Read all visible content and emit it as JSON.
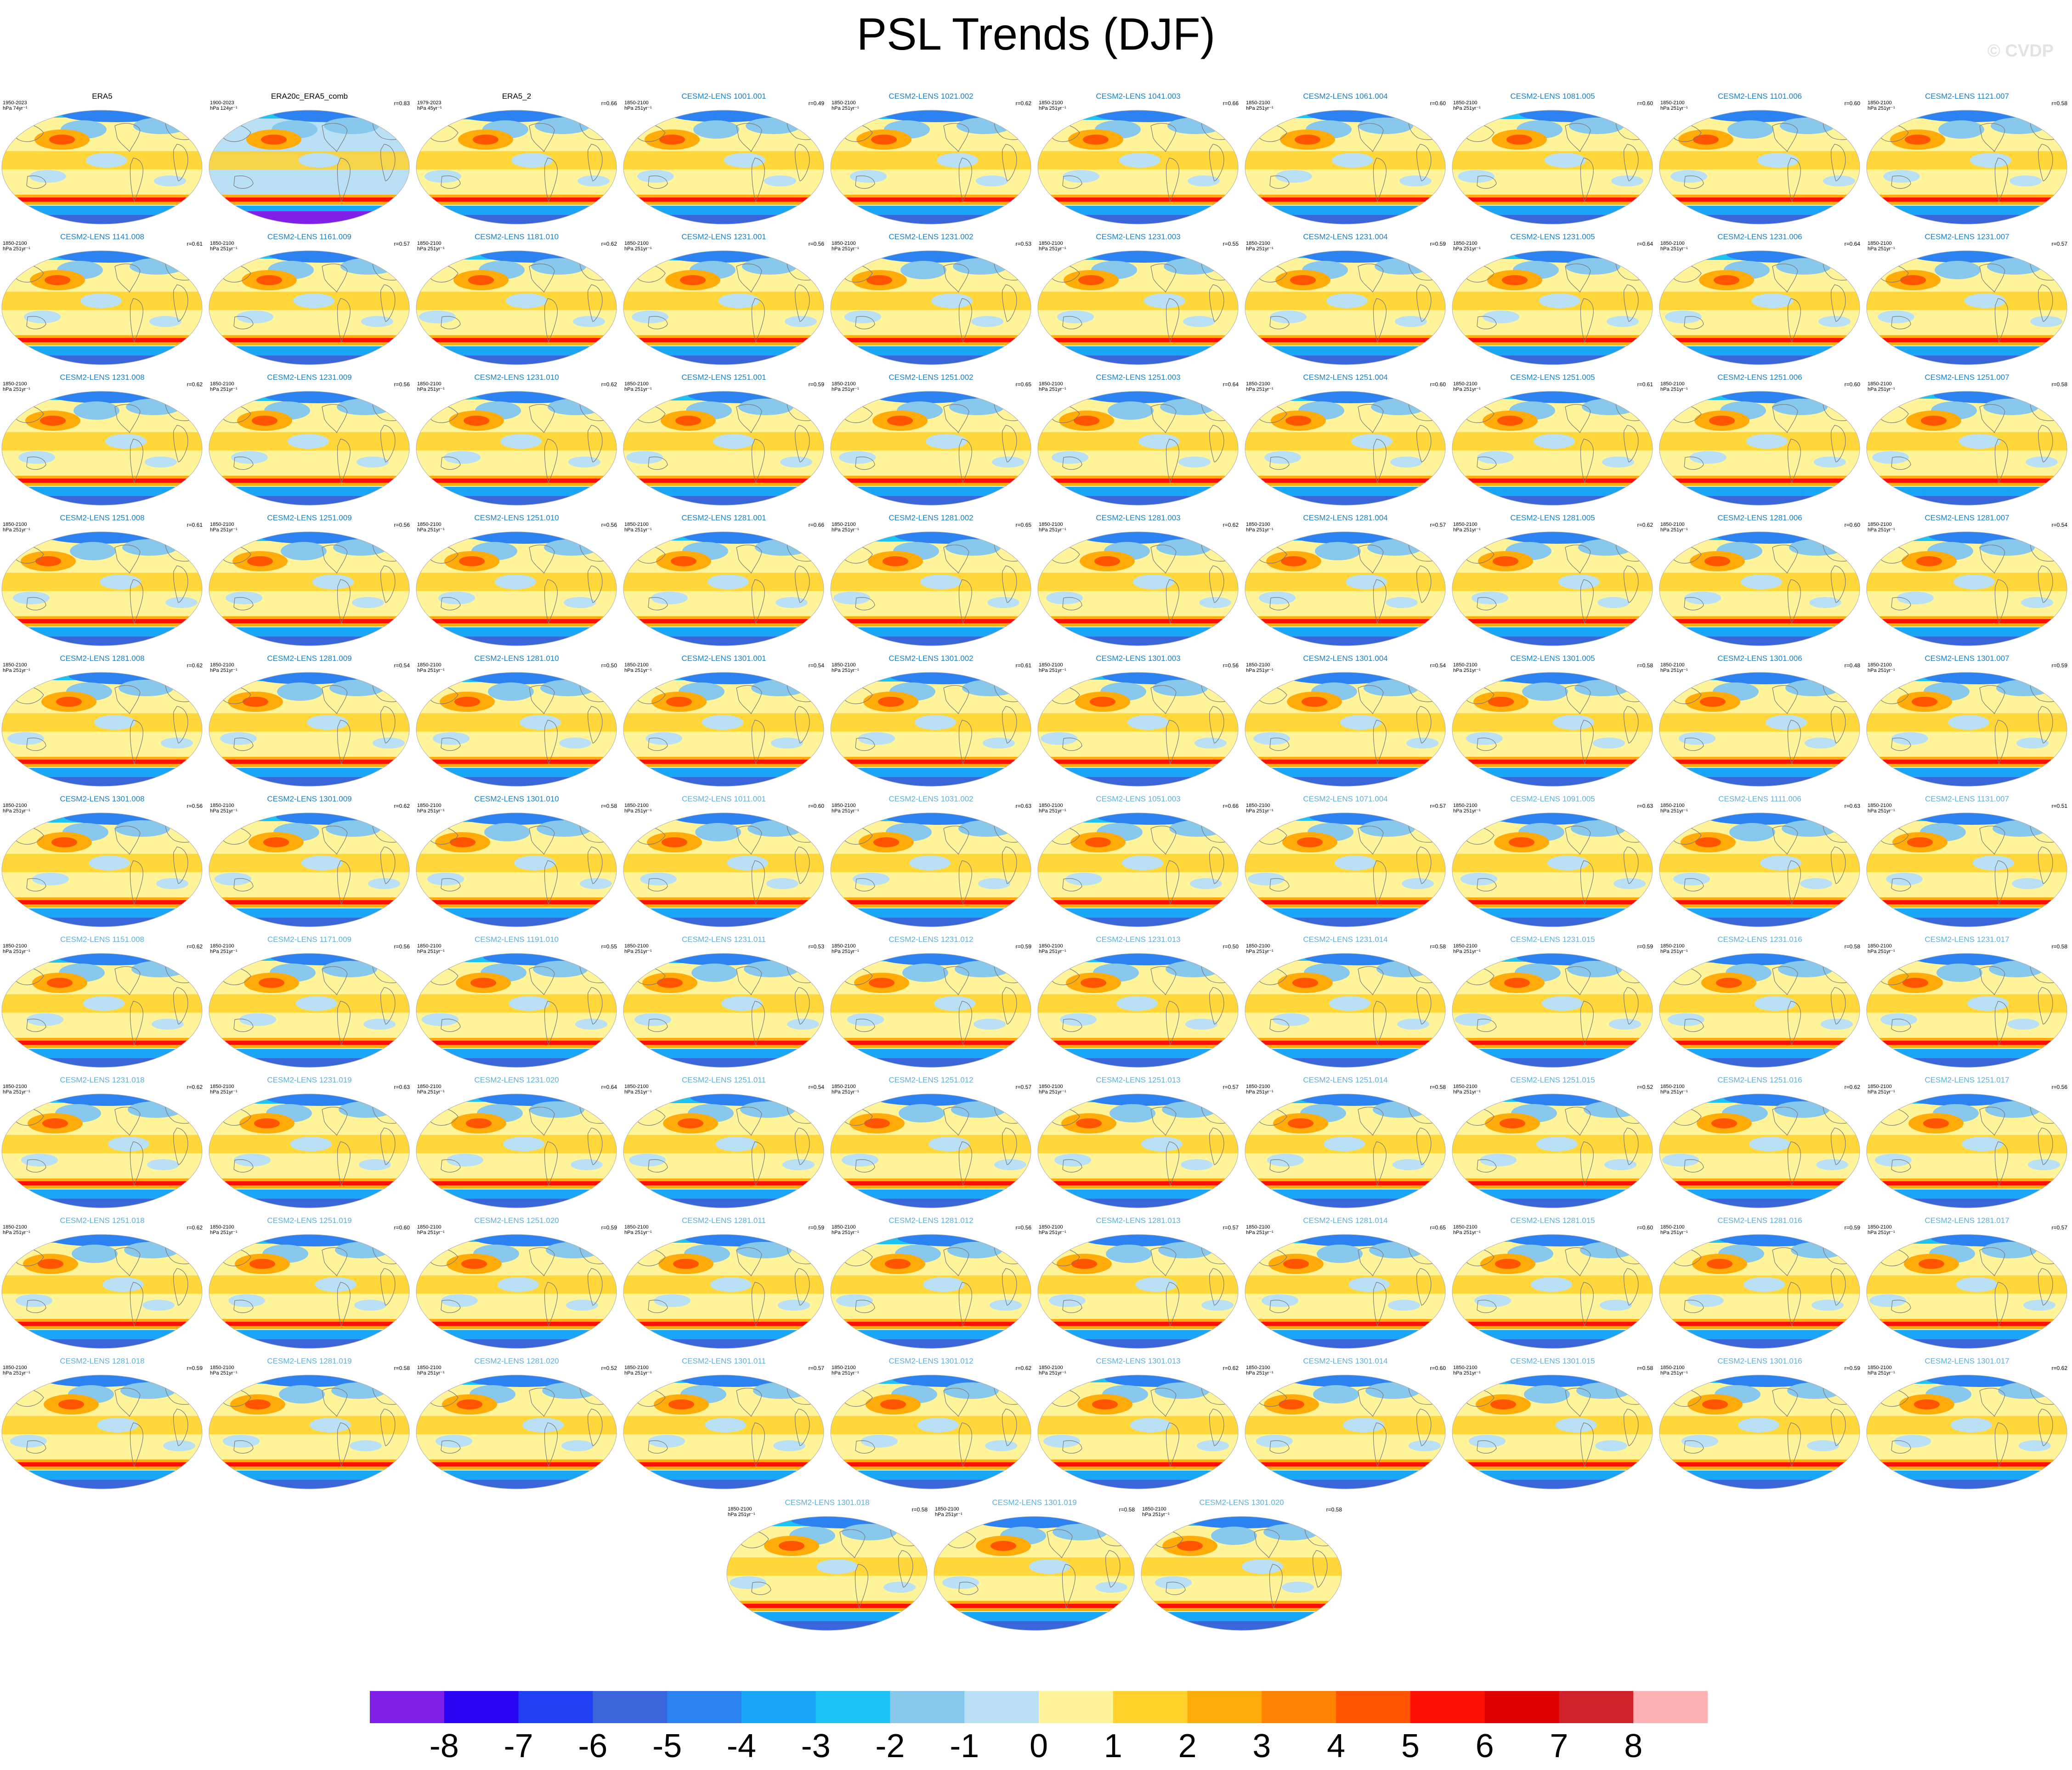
{
  "title": "PSL Trends (DJF)",
  "copyright": "© CVDP",
  "colors": {
    "title_obs": "#000000",
    "title_model_a": "#1a7fc4",
    "title_model_b": "#5fb0d8",
    "land_outline": "#7a7a7a"
  },
  "chart_data": {
    "type": "heatmap",
    "projection": "robinson-like global maps",
    "colorbar": {
      "levels": [
        -8,
        -7,
        -6,
        -5,
        -4,
        -3,
        -2,
        -1,
        0,
        1,
        2,
        3,
        4,
        5,
        6,
        7,
        8
      ],
      "labels": [
        "-8",
        "-7",
        "-6",
        "-5",
        "-4",
        "-3",
        "-2",
        "-1",
        "0",
        "1",
        "2",
        "3",
        "4",
        "5",
        "6",
        "7",
        "8"
      ],
      "colors": [
        "#7f1fe8",
        "#2a06f5",
        "#1f3ff0",
        "#3a66dc",
        "#2d82f2",
        "#1aa6f7",
        "#1dc3f5",
        "#88c8ec",
        "#b9e0f5",
        "#fff49a",
        "#ffd12a",
        "#ffab0a",
        "#ff8200",
        "#ff5400",
        "#ff1000",
        "#df0000",
        "#d0222a",
        "#ffb1b3"
      ]
    },
    "panels": [
      {
        "title": "ERA5",
        "period": "1950-2023",
        "unit": "hPa 74yr⁻¹",
        "corr": "",
        "style": "obs"
      },
      {
        "title": "ERA20c_ERA5_comb",
        "period": "1900-2023",
        "unit": "hPa 124yr⁻¹",
        "corr": "r=0.83",
        "style": "obs"
      },
      {
        "title": "ERA5_2",
        "period": "1979-2023",
        "unit": "hPa 45yr⁻¹",
        "corr": "r=0.66",
        "style": "obs"
      },
      {
        "title": "CESM2-LENS 1001.001",
        "period": "1850-2100",
        "unit": "hPa 251yr⁻¹",
        "corr": "r=0.49",
        "style": "a"
      },
      {
        "title": "CESM2-LENS 1021.002",
        "period": "1850-2100",
        "unit": "hPa 251yr⁻¹",
        "corr": "r=0.62",
        "style": "a"
      },
      {
        "title": "CESM2-LENS 1041.003",
        "period": "1850-2100",
        "unit": "hPa 251yr⁻¹",
        "corr": "r=0.66",
        "style": "a"
      },
      {
        "title": "CESM2-LENS 1061.004",
        "period": "1850-2100",
        "unit": "hPa 251yr⁻¹",
        "corr": "r=0.60",
        "style": "a"
      },
      {
        "title": "CESM2-LENS 1081.005",
        "period": "1850-2100",
        "unit": "hPa 251yr⁻¹",
        "corr": "r=0.60",
        "style": "a"
      },
      {
        "title": "CESM2-LENS 1101.006",
        "period": "1850-2100",
        "unit": "hPa 251yr⁻¹",
        "corr": "r=0.60",
        "style": "a"
      },
      {
        "title": "CESM2-LENS 1121.007",
        "period": "1850-2100",
        "unit": "hPa 251yr⁻¹",
        "corr": "r=0.58",
        "style": "a"
      },
      {
        "title": "CESM2-LENS 1141.008",
        "period": "1850-2100",
        "unit": "hPa 251yr⁻¹",
        "corr": "r=0.61",
        "style": "a"
      },
      {
        "title": "CESM2-LENS 1161.009",
        "period": "1850-2100",
        "unit": "hPa 251yr⁻¹",
        "corr": "r=0.57",
        "style": "a"
      },
      {
        "title": "CESM2-LENS 1181.010",
        "period": "1850-2100",
        "unit": "hPa 251yr⁻¹",
        "corr": "r=0.62",
        "style": "a"
      },
      {
        "title": "CESM2-LENS 1231.001",
        "period": "1850-2100",
        "unit": "hPa 251yr⁻¹",
        "corr": "r=0.56",
        "style": "a"
      },
      {
        "title": "CESM2-LENS 1231.002",
        "period": "1850-2100",
        "unit": "hPa 251yr⁻¹",
        "corr": "r=0.53",
        "style": "a"
      },
      {
        "title": "CESM2-LENS 1231.003",
        "period": "1850-2100",
        "unit": "hPa 251yr⁻¹",
        "corr": "r=0.55",
        "style": "a"
      },
      {
        "title": "CESM2-LENS 1231.004",
        "period": "1850-2100",
        "unit": "hPa 251yr⁻¹",
        "corr": "r=0.59",
        "style": "a"
      },
      {
        "title": "CESM2-LENS 1231.005",
        "period": "1850-2100",
        "unit": "hPa 251yr⁻¹",
        "corr": "r=0.64",
        "style": "a"
      },
      {
        "title": "CESM2-LENS 1231.006",
        "period": "1850-2100",
        "unit": "hPa 251yr⁻¹",
        "corr": "r=0.64",
        "style": "a"
      },
      {
        "title": "CESM2-LENS 1231.007",
        "period": "1850-2100",
        "unit": "hPa 251yr⁻¹",
        "corr": "r=0.57",
        "style": "a"
      },
      {
        "title": "CESM2-LENS 1231.008",
        "period": "1850-2100",
        "unit": "hPa 251yr⁻¹",
        "corr": "r=0.62",
        "style": "a"
      },
      {
        "title": "CESM2-LENS 1231.009",
        "period": "1850-2100",
        "unit": "hPa 251yr⁻¹",
        "corr": "r=0.56",
        "style": "a"
      },
      {
        "title": "CESM2-LENS 1231.010",
        "period": "1850-2100",
        "unit": "hPa 251yr⁻¹",
        "corr": "r=0.62",
        "style": "a"
      },
      {
        "title": "CESM2-LENS 1251.001",
        "period": "1850-2100",
        "unit": "hPa 251yr⁻¹",
        "corr": "r=0.59",
        "style": "a"
      },
      {
        "title": "CESM2-LENS 1251.002",
        "period": "1850-2100",
        "unit": "hPa 251yr⁻¹",
        "corr": "r=0.65",
        "style": "a"
      },
      {
        "title": "CESM2-LENS 1251.003",
        "period": "1850-2100",
        "unit": "hPa 251yr⁻¹",
        "corr": "r=0.64",
        "style": "a"
      },
      {
        "title": "CESM2-LENS 1251.004",
        "period": "1850-2100",
        "unit": "hPa 251yr⁻¹",
        "corr": "r=0.60",
        "style": "a"
      },
      {
        "title": "CESM2-LENS 1251.005",
        "period": "1850-2100",
        "unit": "hPa 251yr⁻¹",
        "corr": "r=0.61",
        "style": "a"
      },
      {
        "title": "CESM2-LENS 1251.006",
        "period": "1850-2100",
        "unit": "hPa 251yr⁻¹",
        "corr": "r=0.60",
        "style": "a"
      },
      {
        "title": "CESM2-LENS 1251.007",
        "period": "1850-2100",
        "unit": "hPa 251yr⁻¹",
        "corr": "r=0.58",
        "style": "a"
      },
      {
        "title": "CESM2-LENS 1251.008",
        "period": "1850-2100",
        "unit": "hPa 251yr⁻¹",
        "corr": "r=0.61",
        "style": "a"
      },
      {
        "title": "CESM2-LENS 1251.009",
        "period": "1850-2100",
        "unit": "hPa 251yr⁻¹",
        "corr": "r=0.56",
        "style": "a"
      },
      {
        "title": "CESM2-LENS 1251.010",
        "period": "1850-2100",
        "unit": "hPa 251yr⁻¹",
        "corr": "r=0.56",
        "style": "a"
      },
      {
        "title": "CESM2-LENS 1281.001",
        "period": "1850-2100",
        "unit": "hPa 251yr⁻¹",
        "corr": "r=0.66",
        "style": "a"
      },
      {
        "title": "CESM2-LENS 1281.002",
        "period": "1850-2100",
        "unit": "hPa 251yr⁻¹",
        "corr": "r=0.65",
        "style": "a"
      },
      {
        "title": "CESM2-LENS 1281.003",
        "period": "1850-2100",
        "unit": "hPa 251yr⁻¹",
        "corr": "r=0.62",
        "style": "a"
      },
      {
        "title": "CESM2-LENS 1281.004",
        "period": "1850-2100",
        "unit": "hPa 251yr⁻¹",
        "corr": "r=0.57",
        "style": "a"
      },
      {
        "title": "CESM2-LENS 1281.005",
        "period": "1850-2100",
        "unit": "hPa 251yr⁻¹",
        "corr": "r=0.62",
        "style": "a"
      },
      {
        "title": "CESM2-LENS 1281.006",
        "period": "1850-2100",
        "unit": "hPa 251yr⁻¹",
        "corr": "r=0.60",
        "style": "a"
      },
      {
        "title": "CESM2-LENS 1281.007",
        "period": "1850-2100",
        "unit": "hPa 251yr⁻¹",
        "corr": "r=0.54",
        "style": "a"
      },
      {
        "title": "CESM2-LENS 1281.008",
        "period": "1850-2100",
        "unit": "hPa 251yr⁻¹",
        "corr": "r=0.62",
        "style": "a"
      },
      {
        "title": "CESM2-LENS 1281.009",
        "period": "1850-2100",
        "unit": "hPa 251yr⁻¹",
        "corr": "r=0.54",
        "style": "a"
      },
      {
        "title": "CESM2-LENS 1281.010",
        "period": "1850-2100",
        "unit": "hPa 251yr⁻¹",
        "corr": "r=0.50",
        "style": "a"
      },
      {
        "title": "CESM2-LENS 1301.001",
        "period": "1850-2100",
        "unit": "hPa 251yr⁻¹",
        "corr": "r=0.54",
        "style": "a"
      },
      {
        "title": "CESM2-LENS 1301.002",
        "period": "1850-2100",
        "unit": "hPa 251yr⁻¹",
        "corr": "r=0.61",
        "style": "a"
      },
      {
        "title": "CESM2-LENS 1301.003",
        "period": "1850-2100",
        "unit": "hPa 251yr⁻¹",
        "corr": "r=0.56",
        "style": "a"
      },
      {
        "title": "CESM2-LENS 1301.004",
        "period": "1850-2100",
        "unit": "hPa 251yr⁻¹",
        "corr": "r=0.54",
        "style": "a"
      },
      {
        "title": "CESM2-LENS 1301.005",
        "period": "1850-2100",
        "unit": "hPa 251yr⁻¹",
        "corr": "r=0.58",
        "style": "a"
      },
      {
        "title": "CESM2-LENS 1301.006",
        "period": "1850-2100",
        "unit": "hPa 251yr⁻¹",
        "corr": "r=0.48",
        "style": "a"
      },
      {
        "title": "CESM2-LENS 1301.007",
        "period": "1850-2100",
        "unit": "hPa 251yr⁻¹",
        "corr": "r=0.59",
        "style": "a"
      },
      {
        "title": "CESM2-LENS 1301.008",
        "period": "1850-2100",
        "unit": "hPa 251yr⁻¹",
        "corr": "r=0.56",
        "style": "a"
      },
      {
        "title": "CESM2-LENS 1301.009",
        "period": "1850-2100",
        "unit": "hPa 251yr⁻¹",
        "corr": "r=0.62",
        "style": "a"
      },
      {
        "title": "CESM2-LENS 1301.010",
        "period": "1850-2100",
        "unit": "hPa 251yr⁻¹",
        "corr": "r=0.58",
        "style": "a"
      },
      {
        "title": "CESM2-LENS 1011.001",
        "period": "1850-2100",
        "unit": "hPa 251yr⁻¹",
        "corr": "r=0.60",
        "style": "b"
      },
      {
        "title": "CESM2-LENS 1031.002",
        "period": "1850-2100",
        "unit": "hPa 251yr⁻¹",
        "corr": "r=0.63",
        "style": "b"
      },
      {
        "title": "CESM2-LENS 1051.003",
        "period": "1850-2100",
        "unit": "hPa 251yr⁻¹",
        "corr": "r=0.66",
        "style": "b"
      },
      {
        "title": "CESM2-LENS 1071.004",
        "period": "1850-2100",
        "unit": "hPa 251yr⁻¹",
        "corr": "r=0.57",
        "style": "b"
      },
      {
        "title": "CESM2-LENS 1091.005",
        "period": "1850-2100",
        "unit": "hPa 251yr⁻¹",
        "corr": "r=0.63",
        "style": "b"
      },
      {
        "title": "CESM2-LENS 1111.006",
        "period": "1850-2100",
        "unit": "hPa 251yr⁻¹",
        "corr": "r=0.63",
        "style": "b"
      },
      {
        "title": "CESM2-LENS 1131.007",
        "period": "1850-2100",
        "unit": "hPa 251yr⁻¹",
        "corr": "r=0.51",
        "style": "b"
      },
      {
        "title": "CESM2-LENS 1151.008",
        "period": "1850-2100",
        "unit": "hPa 251yr⁻¹",
        "corr": "r=0.62",
        "style": "b"
      },
      {
        "title": "CESM2-LENS 1171.009",
        "period": "1850-2100",
        "unit": "hPa 251yr⁻¹",
        "corr": "r=0.56",
        "style": "b"
      },
      {
        "title": "CESM2-LENS 1191.010",
        "period": "1850-2100",
        "unit": "hPa 251yr⁻¹",
        "corr": "r=0.55",
        "style": "b"
      },
      {
        "title": "CESM2-LENS 1231.011",
        "period": "1850-2100",
        "unit": "hPa 251yr⁻¹",
        "corr": "r=0.53",
        "style": "b"
      },
      {
        "title": "CESM2-LENS 1231.012",
        "period": "1850-2100",
        "unit": "hPa 251yr⁻¹",
        "corr": "r=0.59",
        "style": "b"
      },
      {
        "title": "CESM2-LENS 1231.013",
        "period": "1850-2100",
        "unit": "hPa 251yr⁻¹",
        "corr": "r=0.50",
        "style": "b"
      },
      {
        "title": "CESM2-LENS 1231.014",
        "period": "1850-2100",
        "unit": "hPa 251yr⁻¹",
        "corr": "r=0.58",
        "style": "b"
      },
      {
        "title": "CESM2-LENS 1231.015",
        "period": "1850-2100",
        "unit": "hPa 251yr⁻¹",
        "corr": "r=0.59",
        "style": "b"
      },
      {
        "title": "CESM2-LENS 1231.016",
        "period": "1850-2100",
        "unit": "hPa 251yr⁻¹",
        "corr": "r=0.58",
        "style": "b"
      },
      {
        "title": "CESM2-LENS 1231.017",
        "period": "1850-2100",
        "unit": "hPa 251yr⁻¹",
        "corr": "r=0.58",
        "style": "b"
      },
      {
        "title": "CESM2-LENS 1231.018",
        "period": "1850-2100",
        "unit": "hPa 251yr⁻¹",
        "corr": "r=0.62",
        "style": "b"
      },
      {
        "title": "CESM2-LENS 1231.019",
        "period": "1850-2100",
        "unit": "hPa 251yr⁻¹",
        "corr": "r=0.63",
        "style": "b"
      },
      {
        "title": "CESM2-LENS 1231.020",
        "period": "1850-2100",
        "unit": "hPa 251yr⁻¹",
        "corr": "r=0.64",
        "style": "b"
      },
      {
        "title": "CESM2-LENS 1251.011",
        "period": "1850-2100",
        "unit": "hPa 251yr⁻¹",
        "corr": "r=0.54",
        "style": "b"
      },
      {
        "title": "CESM2-LENS 1251.012",
        "period": "1850-2100",
        "unit": "hPa 251yr⁻¹",
        "corr": "r=0.57",
        "style": "b"
      },
      {
        "title": "CESM2-LENS 1251.013",
        "period": "1850-2100",
        "unit": "hPa 251yr⁻¹",
        "corr": "r=0.57",
        "style": "b"
      },
      {
        "title": "CESM2-LENS 1251.014",
        "period": "1850-2100",
        "unit": "hPa 251yr⁻¹",
        "corr": "r=0.58",
        "style": "b"
      },
      {
        "title": "CESM2-LENS 1251.015",
        "period": "1850-2100",
        "unit": "hPa 251yr⁻¹",
        "corr": "r=0.52",
        "style": "b"
      },
      {
        "title": "CESM2-LENS 1251.016",
        "period": "1850-2100",
        "unit": "hPa 251yr⁻¹",
        "corr": "r=0.62",
        "style": "b"
      },
      {
        "title": "CESM2-LENS 1251.017",
        "period": "1850-2100",
        "unit": "hPa 251yr⁻¹",
        "corr": "r=0.56",
        "style": "b"
      },
      {
        "title": "CESM2-LENS 1251.018",
        "period": "1850-2100",
        "unit": "hPa 251yr⁻¹",
        "corr": "r=0.62",
        "style": "b"
      },
      {
        "title": "CESM2-LENS 1251.019",
        "period": "1850-2100",
        "unit": "hPa 251yr⁻¹",
        "corr": "r=0.60",
        "style": "b"
      },
      {
        "title": "CESM2-LENS 1251.020",
        "period": "1850-2100",
        "unit": "hPa 251yr⁻¹",
        "corr": "r=0.59",
        "style": "b"
      },
      {
        "title": "CESM2-LENS 1281.011",
        "period": "1850-2100",
        "unit": "hPa 251yr⁻¹",
        "corr": "r=0.59",
        "style": "b"
      },
      {
        "title": "CESM2-LENS 1281.012",
        "period": "1850-2100",
        "unit": "hPa 251yr⁻¹",
        "corr": "r=0.56",
        "style": "b"
      },
      {
        "title": "CESM2-LENS 1281.013",
        "period": "1850-2100",
        "unit": "hPa 251yr⁻¹",
        "corr": "r=0.57",
        "style": "b"
      },
      {
        "title": "CESM2-LENS 1281.014",
        "period": "1850-2100",
        "unit": "hPa 251yr⁻¹",
        "corr": "r=0.65",
        "style": "b"
      },
      {
        "title": "CESM2-LENS 1281.015",
        "period": "1850-2100",
        "unit": "hPa 251yr⁻¹",
        "corr": "r=0.60",
        "style": "b"
      },
      {
        "title": "CESM2-LENS 1281.016",
        "period": "1850-2100",
        "unit": "hPa 251yr⁻¹",
        "corr": "r=0.59",
        "style": "b"
      },
      {
        "title": "CESM2-LENS 1281.017",
        "period": "1850-2100",
        "unit": "hPa 251yr⁻¹",
        "corr": "r=0.57",
        "style": "b"
      },
      {
        "title": "CESM2-LENS 1281.018",
        "period": "1850-2100",
        "unit": "hPa 251yr⁻¹",
        "corr": "r=0.59",
        "style": "b"
      },
      {
        "title": "CESM2-LENS 1281.019",
        "period": "1850-2100",
        "unit": "hPa 251yr⁻¹",
        "corr": "r=0.58",
        "style": "b"
      },
      {
        "title": "CESM2-LENS 1281.020",
        "period": "1850-2100",
        "unit": "hPa 251yr⁻¹",
        "corr": "r=0.52",
        "style": "b"
      },
      {
        "title": "CESM2-LENS 1301.011",
        "period": "1850-2100",
        "unit": "hPa 251yr⁻¹",
        "corr": "r=0.57",
        "style": "b"
      },
      {
        "title": "CESM2-LENS 1301.012",
        "period": "1850-2100",
        "unit": "hPa 251yr⁻¹",
        "corr": "r=0.62",
        "style": "b"
      },
      {
        "title": "CESM2-LENS 1301.013",
        "period": "1850-2100",
        "unit": "hPa 251yr⁻¹",
        "corr": "r=0.62",
        "style": "b"
      },
      {
        "title": "CESM2-LENS 1301.014",
        "period": "1850-2100",
        "unit": "hPa 251yr⁻¹",
        "corr": "r=0.60",
        "style": "b"
      },
      {
        "title": "CESM2-LENS 1301.015",
        "period": "1850-2100",
        "unit": "hPa 251yr⁻¹",
        "corr": "r=0.58",
        "style": "b"
      },
      {
        "title": "CESM2-LENS 1301.016",
        "period": "1850-2100",
        "unit": "hPa 251yr⁻¹",
        "corr": "r=0.59",
        "style": "b"
      },
      {
        "title": "CESM2-LENS 1301.017",
        "period": "1850-2100",
        "unit": "hPa 251yr⁻¹",
        "corr": "r=0.62",
        "style": "b"
      },
      {
        "title": "CESM2-LENS 1301.018",
        "period": "1850-2100",
        "unit": "hPa 251yr⁻¹",
        "corr": "r=0.58",
        "style": "b"
      },
      {
        "title": "CESM2-LENS 1301.019",
        "period": "1850-2100",
        "unit": "hPa 251yr⁻¹",
        "corr": "r=0.58",
        "style": "b"
      },
      {
        "title": "CESM2-LENS 1301.020",
        "period": "1850-2100",
        "unit": "hPa 251yr⁻¹",
        "corr": "r=0.58",
        "style": "b"
      }
    ]
  }
}
